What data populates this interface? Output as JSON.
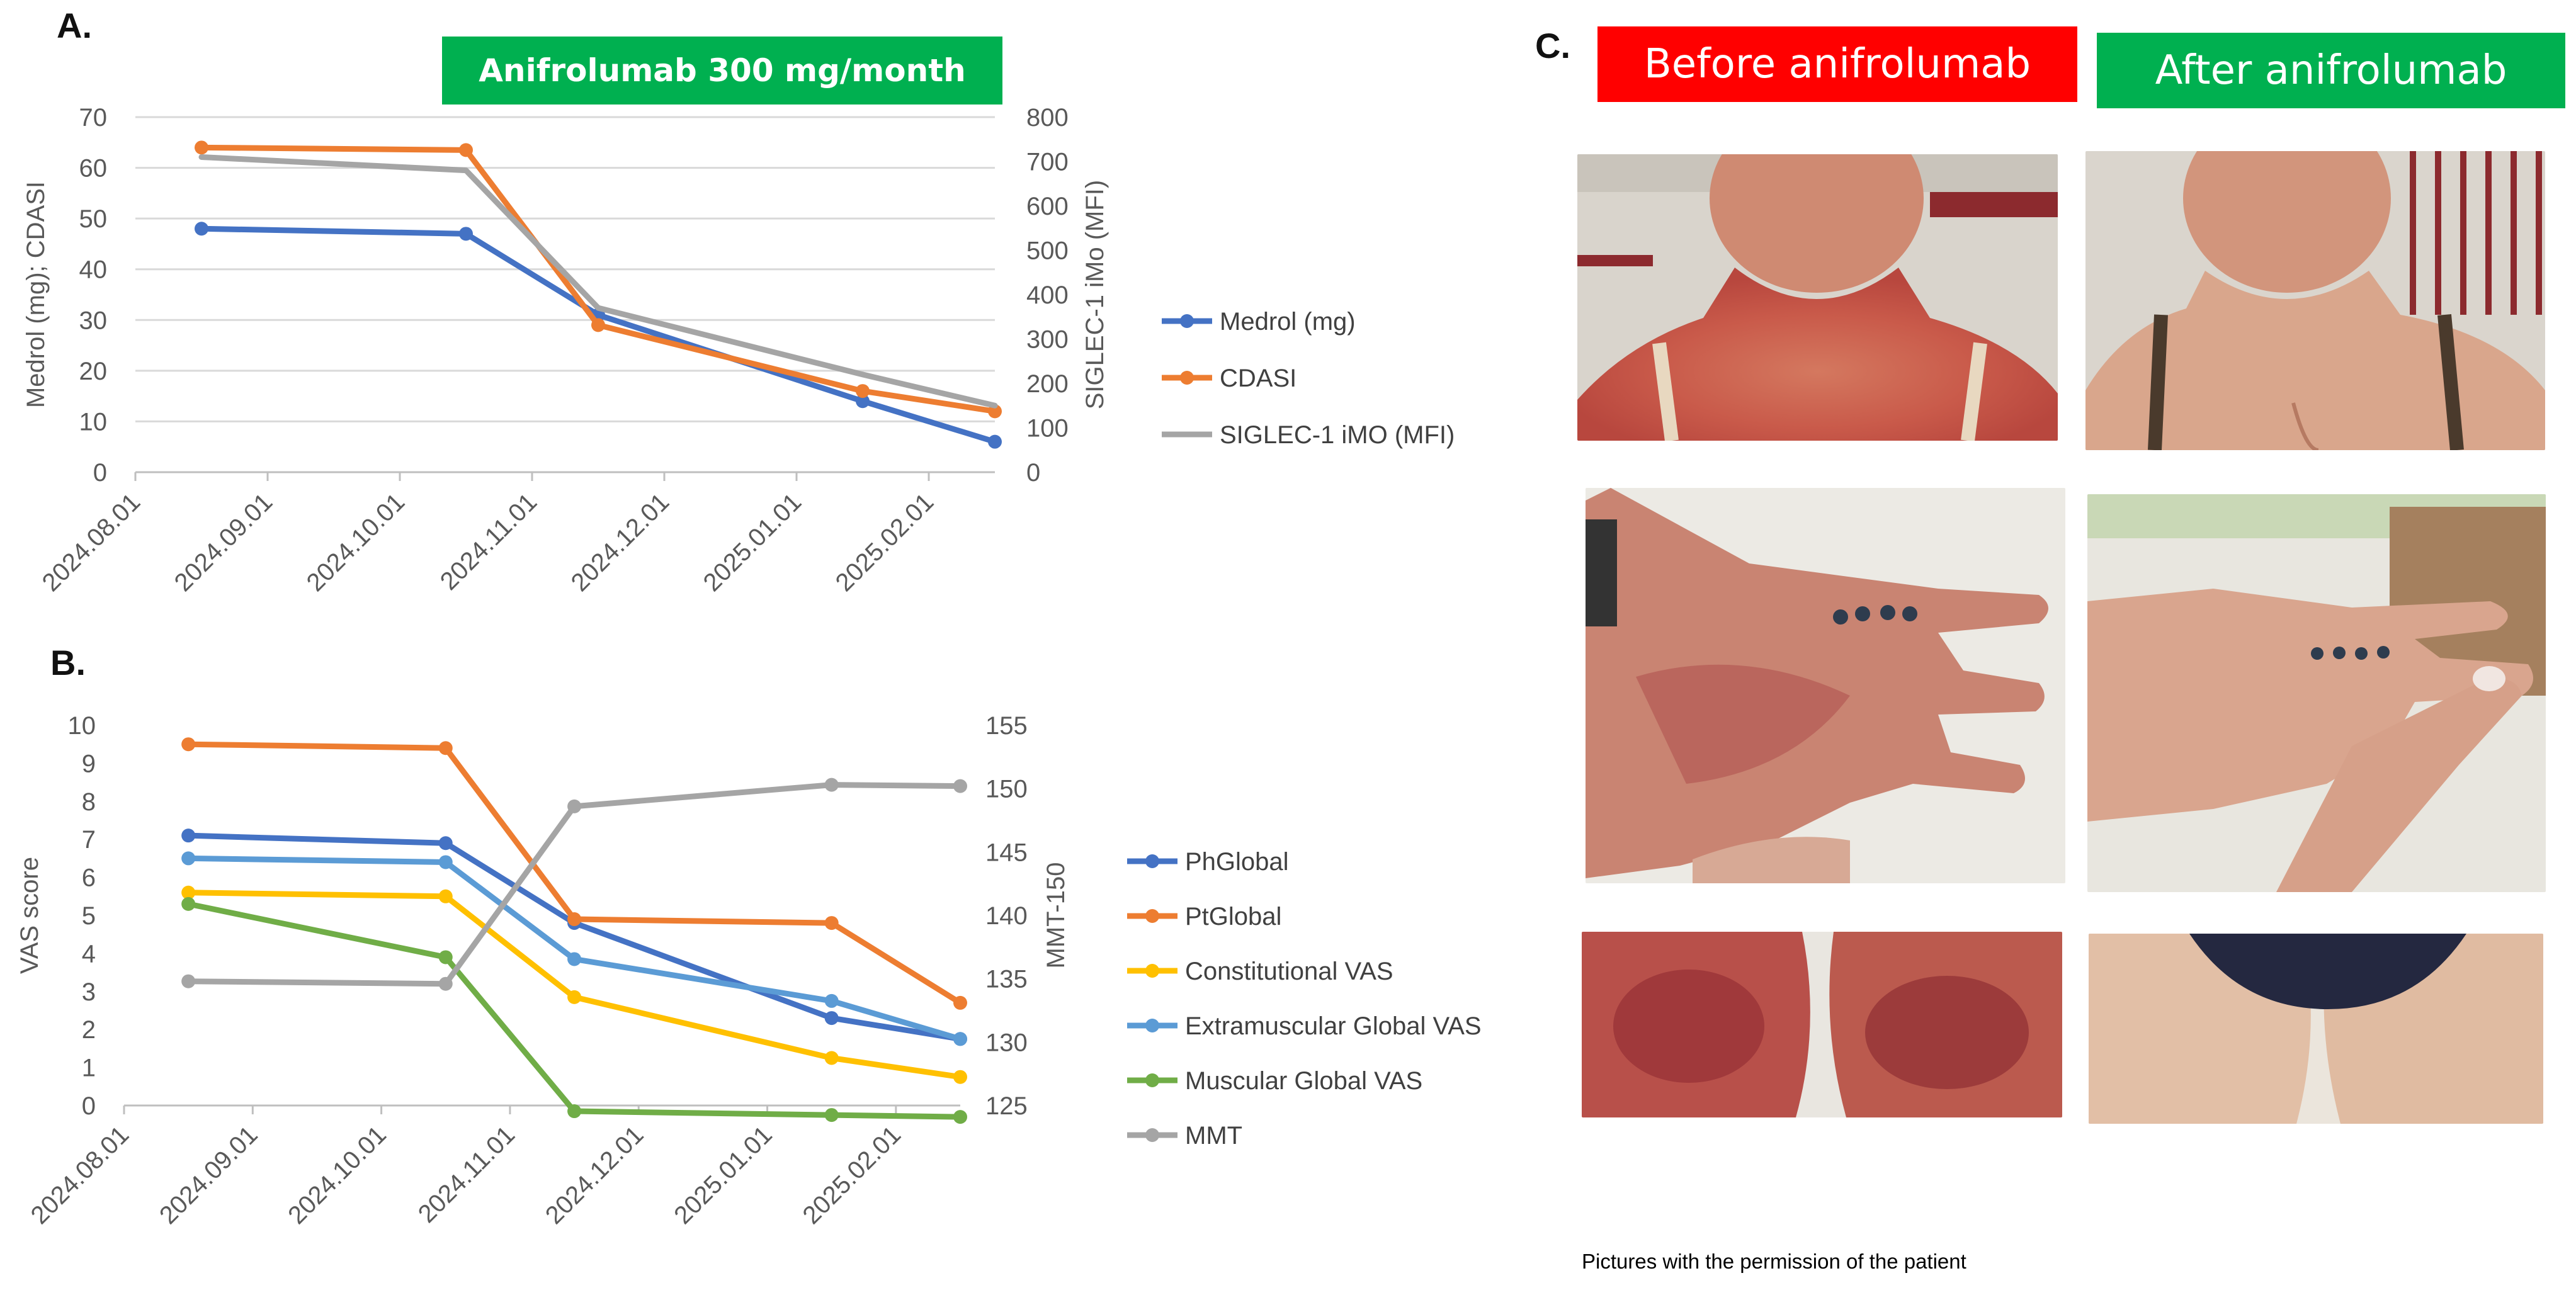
{
  "colors": {
    "blue": "#4472C4",
    "orange": "#ED7D31",
    "gray": "#A5A5A5",
    "yellow": "#FFC000",
    "lightblue": "#5B9BD5",
    "green": "#70AD47",
    "banner_green": "#00B050",
    "banner_red": "#FF0000"
  },
  "panels": {
    "a": "A.",
    "b": "B.",
    "c": "C."
  },
  "banners": {
    "treatment": "Anifrolumab 300 mg/month",
    "before": "Before anifrolumab",
    "after": "After anifrolumab"
  },
  "photos": {
    "row1": "neck-and-chest",
    "row2": "hand",
    "row3": "thighs"
  },
  "caption": "Pictures with the  permission of the patient",
  "chart_data": [
    {
      "id": "A",
      "type": "line",
      "title": "",
      "xlabel": "",
      "ylabel": "Medrol (mg); CDASI",
      "y2label": "SIGLEC-1 iMo (MFI)",
      "xtick_labels": [
        "2024.08.01",
        "2024.09.01",
        "2024.10.01",
        "2024.11.01",
        "2024.12.01",
        "2025.01.01",
        "2025.02.01"
      ],
      "x_range": [
        0,
        6.5
      ],
      "ylim": [
        0,
        70
      ],
      "yticks": [
        0,
        10,
        20,
        30,
        40,
        50,
        60,
        70
      ],
      "y2lim": [
        0,
        800
      ],
      "y2ticks": [
        0,
        100,
        200,
        300,
        400,
        500,
        600,
        700,
        800
      ],
      "grid": true,
      "legend_position": "right",
      "series": [
        {
          "name": "Medrol (mg)",
          "color": "#4472C4",
          "axis": "left",
          "x": [
            0.5,
            2.5,
            3.5,
            5.5,
            6.5
          ],
          "y": [
            48,
            47,
            31,
            14,
            6
          ]
        },
        {
          "name": "CDASI",
          "color": "#ED7D31",
          "axis": "left",
          "x": [
            0.5,
            2.5,
            3.5,
            5.5,
            6.5
          ],
          "y": [
            64,
            63.5,
            29,
            16,
            12
          ]
        },
        {
          "name": "SIGLEC-1 iMO (MFI)",
          "color": "#A5A5A5",
          "axis": "right",
          "x": [
            0.5,
            2.5,
            3.5,
            5.5,
            6.5
          ],
          "y": [
            710,
            680,
            370,
            220,
            150
          ],
          "markers": false
        }
      ]
    },
    {
      "id": "B",
      "type": "line",
      "title": "",
      "xlabel": "",
      "ylabel": "VAS score",
      "y2label": "MMT-150",
      "xtick_labels": [
        "2024.08.01",
        "2024.09.01",
        "2024.10.01",
        "2024.11.01",
        "2024.12.01",
        "2025.01.01",
        "2025.02.01"
      ],
      "x_range": [
        0,
        6.5
      ],
      "ylim": [
        0,
        10
      ],
      "yticks": [
        0,
        1,
        2,
        3,
        4,
        5,
        6,
        7,
        8,
        9,
        10
      ],
      "y2lim": [
        125,
        155
      ],
      "y2ticks": [
        125,
        130,
        135,
        140,
        145,
        150,
        155
      ],
      "grid": false,
      "legend_position": "right",
      "series": [
        {
          "name": "PhGlobal",
          "color": "#4472C4",
          "axis": "left",
          "x": [
            0.5,
            2.5,
            3.5,
            5.5,
            6.5
          ],
          "y": [
            7.1,
            6.9,
            4.8,
            2.3,
            1.75
          ]
        },
        {
          "name": "PtGlobal",
          "color": "#ED7D31",
          "axis": "left",
          "x": [
            0.5,
            2.5,
            3.5,
            5.5,
            6.5
          ],
          "y": [
            9.5,
            9.4,
            4.9,
            4.8,
            2.7
          ]
        },
        {
          "name": "Constitutional VAS",
          "color": "#FFC000",
          "axis": "left",
          "x": [
            0.5,
            2.5,
            3.5,
            5.5,
            6.5
          ],
          "y": [
            5.6,
            5.5,
            2.85,
            1.25,
            0.75
          ]
        },
        {
          "name": "Extramuscular Global VAS",
          "color": "#5B9BD5",
          "axis": "left",
          "x": [
            0.5,
            2.5,
            3.5,
            5.5,
            6.5
          ],
          "y": [
            6.5,
            6.4,
            3.85,
            2.75,
            1.75
          ]
        },
        {
          "name": "Muscular Global VAS",
          "color": "#70AD47",
          "axis": "left",
          "x": [
            0.5,
            2.5,
            3.5,
            5.5,
            6.5
          ],
          "y": [
            5.3,
            3.9,
            -0.15,
            -0.25,
            -0.3
          ]
        },
        {
          "name": "MMT",
          "color": "#A5A5A5",
          "axis": "right",
          "x": [
            0.5,
            2.5,
            3.5,
            5.5,
            6.5
          ],
          "y": [
            134.8,
            134.6,
            148.6,
            150.3,
            150.2
          ]
        }
      ]
    }
  ]
}
